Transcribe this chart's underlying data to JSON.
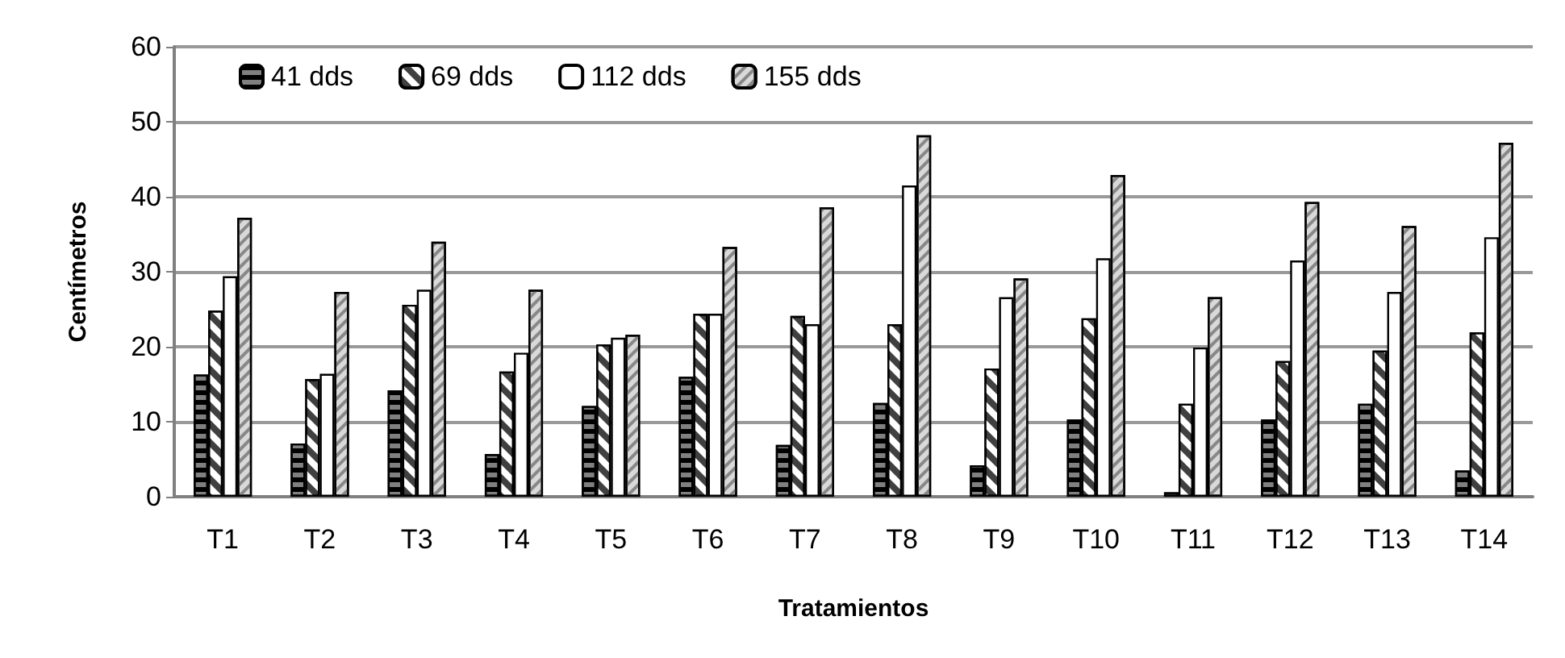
{
  "chart_data": {
    "type": "bar",
    "xlabel": "Tratamientos",
    "ylabel": "Centímetros",
    "categories": [
      "T1",
      "T2",
      "T3",
      "T4",
      "T5",
      "T6",
      "T7",
      "T8",
      "T9",
      "T10",
      "T11",
      "T12",
      "T13",
      "T14"
    ],
    "series": [
      {
        "name": "41 dds",
        "color": "#808080",
        "values": [
          16.3,
          7.1,
          14.2,
          5.7,
          12.1,
          16.0,
          6.9,
          12.5,
          4.2,
          10.3,
          0.6,
          10.3,
          12.4,
          3.5
        ]
      },
      {
        "name": "69 dds",
        "color": "#404040",
        "values": [
          24.8,
          15.7,
          25.6,
          16.7,
          20.3,
          24.4,
          24.1,
          23.0,
          17.1,
          23.8,
          12.4,
          18.1,
          19.5,
          21.9
        ]
      },
      {
        "name": "112 dds",
        "color": "#ffffff",
        "values": [
          29.4,
          16.4,
          27.6,
          19.2,
          21.2,
          24.4,
          23.0,
          41.5,
          26.6,
          31.8,
          19.9,
          31.5,
          27.3,
          34.6
        ]
      },
      {
        "name": "155 dds",
        "color": "#d9d9d9",
        "values": [
          37.2,
          27.3,
          34.0,
          27.6,
          21.6,
          33.3,
          38.6,
          48.2,
          29.1,
          42.9,
          26.6,
          39.3,
          36.1,
          47.2
        ]
      }
    ],
    "ylim": [
      0,
      60
    ],
    "yticks": [
      0,
      10,
      20,
      30,
      40,
      50,
      60
    ],
    "grid": "y",
    "legend": "top left"
  }
}
